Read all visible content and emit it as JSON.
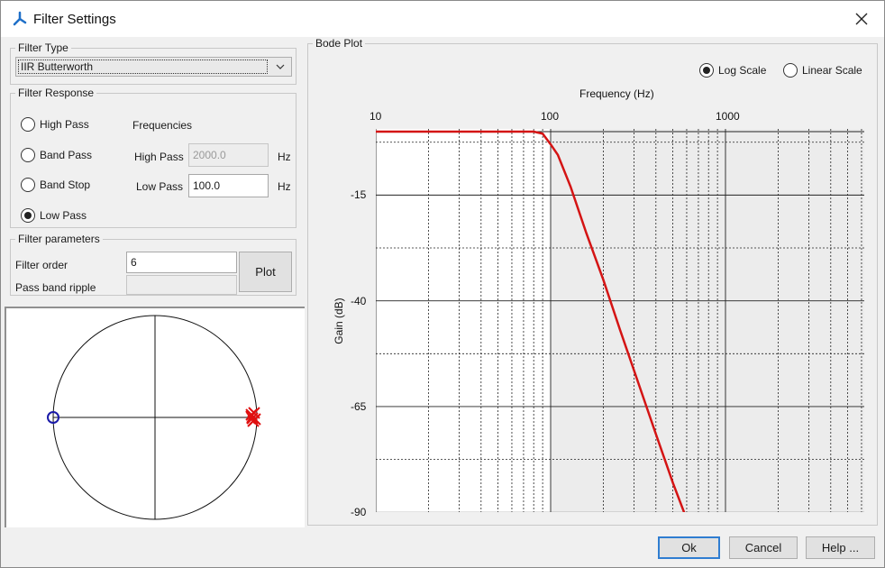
{
  "window": {
    "title": "Filter Settings",
    "accent": "#1e6fc8"
  },
  "filter_type": {
    "legend": "Filter Type",
    "selected": "IIR Butterworth"
  },
  "filter_response": {
    "legend": "Filter Response",
    "options": [
      "High Pass",
      "Band Pass",
      "Band Stop",
      "Low Pass"
    ],
    "selected": "Low Pass",
    "frequencies_title": "Frequencies",
    "high_pass": {
      "label": "High Pass",
      "value": "2000.0",
      "unit": "Hz",
      "enabled": false
    },
    "low_pass": {
      "label": "Low Pass",
      "value": "100.0",
      "unit": "Hz",
      "enabled": true
    }
  },
  "filter_parameters": {
    "legend": "Filter parameters",
    "order_label": "Filter order",
    "order_value": "6",
    "ripple_label": "Pass band ripple",
    "ripple_value": "",
    "plot_button": "Plot"
  },
  "pole_zero": {
    "zero_color": "#1a1aa8",
    "pole_color": "#e01010",
    "zero_count": 1,
    "pole_count": 6
  },
  "bode": {
    "legend": "Bode Plot",
    "scale_options": [
      "Log Scale",
      "Linear Scale"
    ],
    "selected_scale": "Log Scale"
  },
  "chart_data": {
    "type": "line",
    "xlabel": "Frequency (Hz)",
    "ylabel": "Gain (dB)",
    "xscale": "log",
    "x_tick_labels": [
      "10",
      "100",
      "1000"
    ],
    "y_tick_labels": [
      "-15",
      "-40",
      "-65",
      "-90"
    ],
    "xlim": [
      10,
      1000
    ],
    "ylim": [
      -90,
      0
    ],
    "grid": true,
    "curve_color": "#d41414",
    "series": [
      {
        "x": [
          10,
          20,
          40,
          60,
          80,
          90,
          100,
          110,
          130,
          160,
          200,
          250,
          300,
          400,
          500,
          580
        ],
        "y": [
          0,
          0,
          0,
          0,
          0,
          -0.5,
          -3,
          -5.5,
          -13,
          -24,
          -35,
          -47,
          -56.5,
          -71.5,
          -83,
          -90
        ]
      }
    ]
  },
  "buttons": {
    "ok": "Ok",
    "cancel": "Cancel",
    "help": "Help ..."
  }
}
